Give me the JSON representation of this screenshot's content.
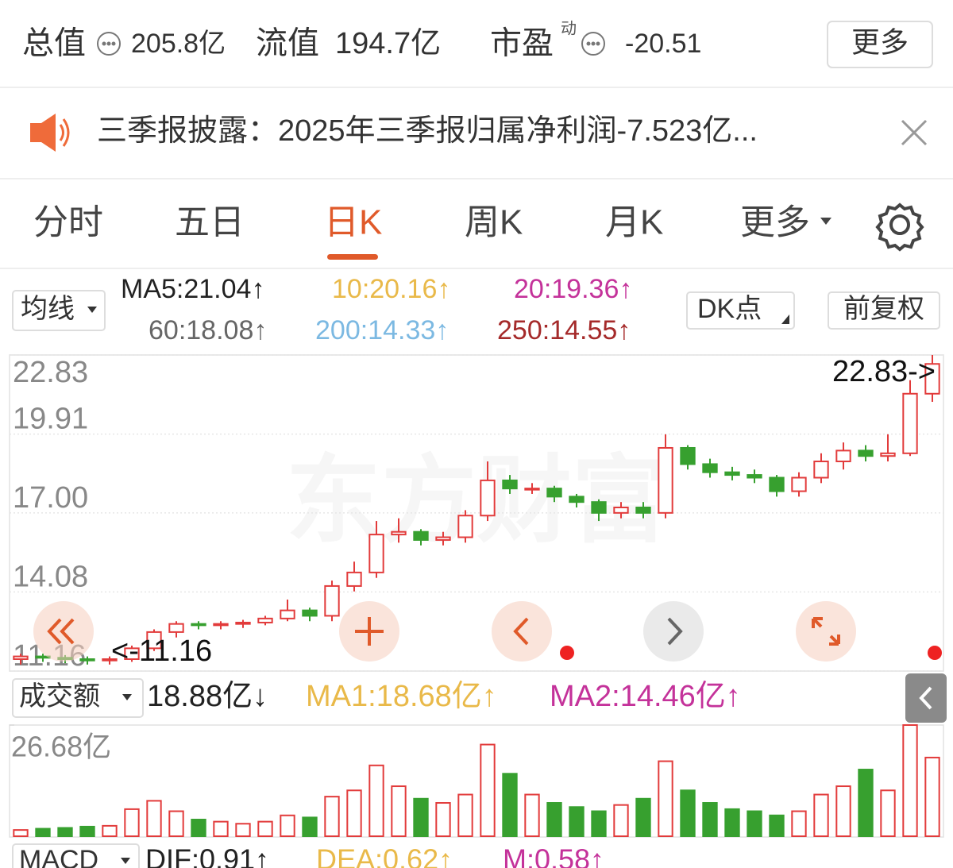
{
  "header": {
    "items": [
      {
        "label": "总值",
        "value": "205.8亿"
      },
      {
        "label": "流值",
        "value": "194.7亿"
      },
      {
        "label": "市盈",
        "sup": "动",
        "value": "-20.51"
      }
    ],
    "more": "更多"
  },
  "notice": "三季报披露：2025年三季报归属净利润-7.523亿...",
  "tabs": [
    "分时",
    "五日",
    "日K",
    "周K",
    "月K",
    "更多"
  ],
  "active_tab": 2,
  "ma_button": "均线",
  "dk_button": "DK点",
  "adjust_button": "前复权",
  "watermark": "东方财富",
  "chart_data": [
    {
      "type": "candlestick",
      "open": [
        11.6,
        11.7,
        11.65,
        11.6,
        11.55,
        11.6,
        12.0,
        12.6,
        12.9,
        12.85,
        12.9,
        12.95,
        13.1,
        13.4,
        13.2,
        14.3,
        14.8,
        16.2,
        16.3,
        16.0,
        16.1,
        16.9,
        18.2,
        17.9,
        17.9,
        17.6,
        17.4,
        17.0,
        17.2,
        17.0,
        19.4,
        18.8,
        18.5,
        18.4,
        18.3,
        17.8,
        18.3,
        18.9,
        19.3,
        19.1,
        19.2,
        21.4
      ],
      "high": [
        11.8,
        11.8,
        11.75,
        11.7,
        11.7,
        12.1,
        12.7,
        13.0,
        13.0,
        13.0,
        13.05,
        13.2,
        13.8,
        13.5,
        14.5,
        15.2,
        16.7,
        16.8,
        16.4,
        16.3,
        17.1,
        18.9,
        18.4,
        18.1,
        18.0,
        17.7,
        17.5,
        17.4,
        17.4,
        19.9,
        19.5,
        19.0,
        18.7,
        18.6,
        18.4,
        18.5,
        19.2,
        19.6,
        19.5,
        19.9,
        21.9,
        22.83
      ],
      "low": [
        11.4,
        11.5,
        11.45,
        11.4,
        11.4,
        11.5,
        11.9,
        12.4,
        12.7,
        12.7,
        12.75,
        12.85,
        13.0,
        13.0,
        13.0,
        14.1,
        14.6,
        15.9,
        15.8,
        15.8,
        15.9,
        16.7,
        17.7,
        17.7,
        17.4,
        17.2,
        16.7,
        16.8,
        16.8,
        16.8,
        18.6,
        18.3,
        18.2,
        18.1,
        17.6,
        17.6,
        18.1,
        18.6,
        18.9,
        18.9,
        19.1,
        21.1
      ],
      "close": [
        11.7,
        11.65,
        11.6,
        11.55,
        11.6,
        12.0,
        12.6,
        12.9,
        12.85,
        12.9,
        12.95,
        13.1,
        13.4,
        13.2,
        14.3,
        14.8,
        16.2,
        16.3,
        16.0,
        16.1,
        16.9,
        18.2,
        17.9,
        17.9,
        17.6,
        17.4,
        17.0,
        17.2,
        17.0,
        19.4,
        18.8,
        18.5,
        18.4,
        18.3,
        17.8,
        18.3,
        18.9,
        19.3,
        19.1,
        19.2,
        21.4,
        22.5
      ],
      "up_color": "#e23b3b",
      "down_color": "#37a02f",
      "ylim": [
        11.16,
        22.83
      ],
      "yticks": [
        11.16,
        14.08,
        {
          "value": 17,
          "label": "17.00"
        },
        19.91,
        22.83
      ],
      "grid": true,
      "series": [
        {
          "name": "MA5:21.04↑",
          "color": "#222222",
          "values": [
            11.8,
            11.75,
            11.7,
            11.62,
            11.6,
            11.7,
            12.0,
            12.45,
            12.7,
            12.85,
            12.9,
            13.0,
            13.15,
            13.2,
            13.5,
            14.2,
            15.0,
            16.1,
            16.1,
            15.9,
            15.8,
            16.6,
            17.6,
            18.2,
            18.0,
            17.7,
            17.4,
            17.1,
            16.9,
            17.8,
            18.9,
            18.6,
            18.3,
            18.4,
            18.3,
            18.1,
            18.5,
            19.0,
            19.3,
            19.4,
            20.2,
            21.04
          ]
        },
        {
          "name": "10:20.16↑",
          "color": "#e9b949",
          "values": [
            11.7,
            11.7,
            11.68,
            11.66,
            11.68,
            11.75,
            11.9,
            12.1,
            12.3,
            12.5,
            12.7,
            12.85,
            13.0,
            13.2,
            13.5,
            13.8,
            14.5,
            15.3,
            15.6,
            15.7,
            16.1,
            16.9,
            17.8,
            18.1,
            18.0,
            17.8,
            17.4,
            17.3,
            17.2,
            17.6,
            18.1,
            18.4,
            18.7,
            18.6,
            18.3,
            18.2,
            18.5,
            18.8,
            19.2,
            19.3,
            19.6,
            20.16
          ]
        },
        {
          "name": "20:19.36↑",
          "color": "#c4329a",
          "values": [
            11.8,
            11.8,
            11.8,
            11.8,
            11.82,
            11.9,
            12.0,
            12.15,
            12.3,
            12.45,
            12.6,
            12.75,
            12.9,
            13.05,
            13.2,
            13.4,
            13.7,
            14.0,
            14.4,
            14.9,
            15.3,
            15.8,
            16.3,
            16.7,
            17.1,
            17.3,
            17.4,
            17.45,
            17.5,
            17.6,
            17.7,
            17.85,
            17.9,
            17.95,
            18.0,
            18.2,
            18.3,
            18.45,
            18.65,
            18.8,
            19.05,
            19.36
          ]
        },
        {
          "name": "60:18.08↑",
          "color": "#666666",
          "values": [
            11.9,
            11.85,
            11.8,
            11.8,
            11.82,
            11.85,
            11.88,
            11.9,
            11.95,
            12.0,
            12.05,
            12.1,
            12.15,
            12.2,
            12.25,
            12.35,
            12.5,
            12.65,
            12.8,
            12.95,
            13.15,
            13.35,
            13.55,
            13.75,
            13.95,
            14.15,
            14.35,
            14.55,
            14.75,
            14.95,
            15.1,
            15.25,
            15.4,
            15.55,
            15.7,
            15.85,
            16.0,
            16.2,
            16.45,
            16.75,
            17.4,
            18.08
          ]
        },
        {
          "name": "200:14.33↑",
          "color": "#7cb9e2",
          "values": [
            13.45,
            13.44,
            13.43,
            13.42,
            13.42,
            13.42,
            13.42,
            13.42,
            13.43,
            13.43,
            13.44,
            13.44,
            13.45,
            13.46,
            13.47,
            13.48,
            13.5,
            13.52,
            13.54,
            13.56,
            13.58,
            13.6,
            13.62,
            13.64,
            13.66,
            13.68,
            13.71,
            13.74,
            13.77,
            13.8,
            13.83,
            13.86,
            13.9,
            13.94,
            13.98,
            14.02,
            14.06,
            14.11,
            14.16,
            14.21,
            14.27,
            14.33
          ]
        },
        {
          "name": "250:14.55↑",
          "color": "#a52a2a",
          "values": [
            13.33,
            13.32,
            13.31,
            13.3,
            13.3,
            13.3,
            13.3,
            13.31,
            13.32,
            13.33,
            13.34,
            13.35,
            13.36,
            13.37,
            13.38,
            13.39,
            13.41,
            13.44,
            13.47,
            13.5,
            13.53,
            13.56,
            13.6,
            13.64,
            13.68,
            13.72,
            13.76,
            13.8,
            13.84,
            13.88,
            13.92,
            13.96,
            14.0,
            14.05,
            14.1,
            14.15,
            14.2,
            14.26,
            14.32,
            14.38,
            14.46,
            14.55
          ]
        }
      ],
      "annotations": [
        {
          "text": "22.83->"
        },
        {
          "text": "<-11.16"
        }
      ]
    },
    {
      "type": "bar",
      "values": [
        1.5,
        1.8,
        2.0,
        2.3,
        2.5,
        6.5,
        8.5,
        6.0,
        4.0,
        3.5,
        3.0,
        3.5,
        5.0,
        4.5,
        9.5,
        11.0,
        17.0,
        12.0,
        9.0,
        8.0,
        10.0,
        22.0,
        15.0,
        10.0,
        8.0,
        7.0,
        6.0,
        7.5,
        9.0,
        18.0,
        11.0,
        8.0,
        6.5,
        6.0,
        5.0,
        6.0,
        10.0,
        12.0,
        16.0,
        11.0,
        26.68,
        18.88
      ],
      "ylim": [
        0,
        26.68
      ],
      "yticks": [
        {
          "value": 26.68,
          "label": "26.68亿"
        }
      ],
      "series": [
        {
          "name": "MA1:18.68亿↑",
          "color": "#e9b949",
          "values": [
            2,
            2,
            2,
            2,
            2.1,
            3,
            4.2,
            5,
            5.4,
            5.6,
            5.1,
            4.2,
            4,
            4,
            5,
            6.6,
            9,
            10.8,
            11.6,
            11.6,
            11.2,
            12.2,
            13.4,
            13,
            12.6,
            12,
            9.2,
            7.7,
            7.5,
            9.5,
            10.3,
            10.7,
            10.5,
            9.9,
            8.4,
            6.7,
            6.7,
            7.8,
            9.8,
            11,
            15.1,
            18.68
          ]
        },
        {
          "name": "MA2:14.46亿↑",
          "color": "#c4329a",
          "values": [
            2,
            2,
            2,
            2,
            2,
            2.3,
            2.8,
            3.3,
            3.8,
            4.1,
            4.3,
            4.4,
            4.5,
            4.6,
            4.8,
            5.1,
            6.2,
            7.1,
            8,
            8.6,
            8.4,
            9.5,
            10.5,
            10.8,
            11,
            11.5,
            11.4,
            10.6,
            10,
            10.4,
            10.6,
            10,
            8.9,
            8.3,
            8.4,
            8.6,
            8.5,
            9.1,
            9.7,
            10.3,
            12.6,
            14.46
          ]
        }
      ]
    }
  ],
  "volume_header": {
    "label": "成交额",
    "current": "18.88亿↓"
  },
  "macd_header": {
    "label": "MACD",
    "items": [
      {
        "text": "DIF:0.91↑",
        "color": "#222222"
      },
      {
        "text": "DEA:0.62↑",
        "color": "#e9b949"
      },
      {
        "text": "M:0.58↑",
        "color": "#c4329a"
      }
    ]
  }
}
